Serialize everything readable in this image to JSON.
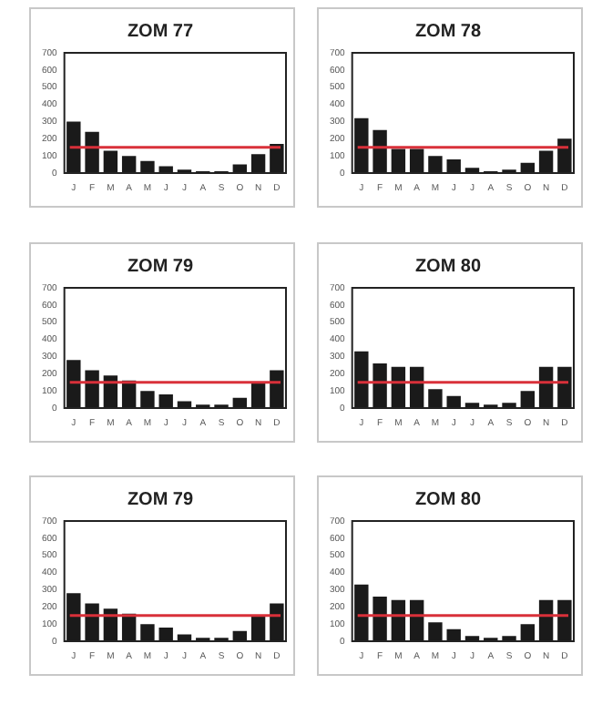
{
  "chart_data": [
    {
      "type": "bar",
      "title": "ZOM 77",
      "categories": [
        "J",
        "F",
        "M",
        "A",
        "M",
        "J",
        "J",
        "A",
        "S",
        "O",
        "N",
        "D"
      ],
      "values": [
        300,
        240,
        130,
        100,
        70,
        40,
        20,
        10,
        10,
        50,
        110,
        170
      ],
      "color": "#1a1a1a",
      "ylim": [
        0,
        700
      ],
      "yticks": [
        0,
        100,
        200,
        300,
        400,
        500,
        600,
        700
      ],
      "grid": false,
      "ref_lines": [
        {
          "axis": "y",
          "value": 150,
          "color": "#d9303a"
        }
      ]
    },
    {
      "type": "bar",
      "title": "ZOM 78",
      "categories": [
        "J",
        "F",
        "M",
        "A",
        "M",
        "J",
        "J",
        "A",
        "S",
        "O",
        "N",
        "D"
      ],
      "values": [
        320,
        250,
        140,
        140,
        100,
        80,
        30,
        10,
        20,
        60,
        130,
        200
      ],
      "color": "#1a1a1a",
      "ylim": [
        0,
        700
      ],
      "yticks": [
        0,
        100,
        200,
        300,
        400,
        500,
        600,
        700
      ],
      "grid": false,
      "ref_lines": [
        {
          "axis": "y",
          "value": 150,
          "color": "#d9303a"
        }
      ]
    },
    {
      "type": "bar",
      "title": "ZOM 79",
      "categories": [
        "J",
        "F",
        "M",
        "A",
        "M",
        "J",
        "J",
        "A",
        "S",
        "O",
        "N",
        "D"
      ],
      "values": [
        280,
        220,
        190,
        160,
        100,
        80,
        40,
        20,
        20,
        60,
        150,
        220
      ],
      "color": "#1a1a1a",
      "ylim": [
        0,
        700
      ],
      "yticks": [
        0,
        100,
        200,
        300,
        400,
        500,
        600,
        700
      ],
      "grid": false,
      "ref_lines": [
        {
          "axis": "y",
          "value": 150,
          "color": "#d9303a"
        }
      ]
    },
    {
      "type": "bar",
      "title": "ZOM 80",
      "categories": [
        "J",
        "F",
        "M",
        "A",
        "M",
        "J",
        "J",
        "A",
        "S",
        "O",
        "N",
        "D"
      ],
      "values": [
        330,
        260,
        240,
        240,
        110,
        70,
        30,
        20,
        30,
        100,
        240,
        240
      ],
      "color": "#1a1a1a",
      "ylim": [
        0,
        700
      ],
      "yticks": [
        0,
        100,
        200,
        300,
        400,
        500,
        600,
        700
      ],
      "grid": false,
      "ref_lines": [
        {
          "axis": "y",
          "value": 150,
          "color": "#d9303a"
        }
      ]
    },
    {
      "type": "bar",
      "title": "ZOM 79",
      "categories": [
        "J",
        "F",
        "M",
        "A",
        "M",
        "J",
        "J",
        "A",
        "S",
        "O",
        "N",
        "D"
      ],
      "values": [
        280,
        220,
        190,
        160,
        100,
        80,
        40,
        20,
        20,
        60,
        150,
        220
      ],
      "color": "#1a1a1a",
      "ylim": [
        0,
        700
      ],
      "yticks": [
        0,
        100,
        200,
        300,
        400,
        500,
        600,
        700
      ],
      "grid": false,
      "ref_lines": [
        {
          "axis": "y",
          "value": 150,
          "color": "#d9303a"
        }
      ]
    },
    {
      "type": "bar",
      "title": "ZOM 80",
      "categories": [
        "J",
        "F",
        "M",
        "A",
        "M",
        "J",
        "J",
        "A",
        "S",
        "O",
        "N",
        "D"
      ],
      "values": [
        330,
        260,
        240,
        240,
        110,
        70,
        30,
        20,
        30,
        100,
        240,
        240
      ],
      "color": "#1a1a1a",
      "ylim": [
        0,
        700
      ],
      "yticks": [
        0,
        100,
        200,
        300,
        400,
        500,
        600,
        700
      ],
      "grid": false,
      "ref_lines": [
        {
          "axis": "y",
          "value": 150,
          "color": "#d9303a"
        }
      ]
    }
  ]
}
